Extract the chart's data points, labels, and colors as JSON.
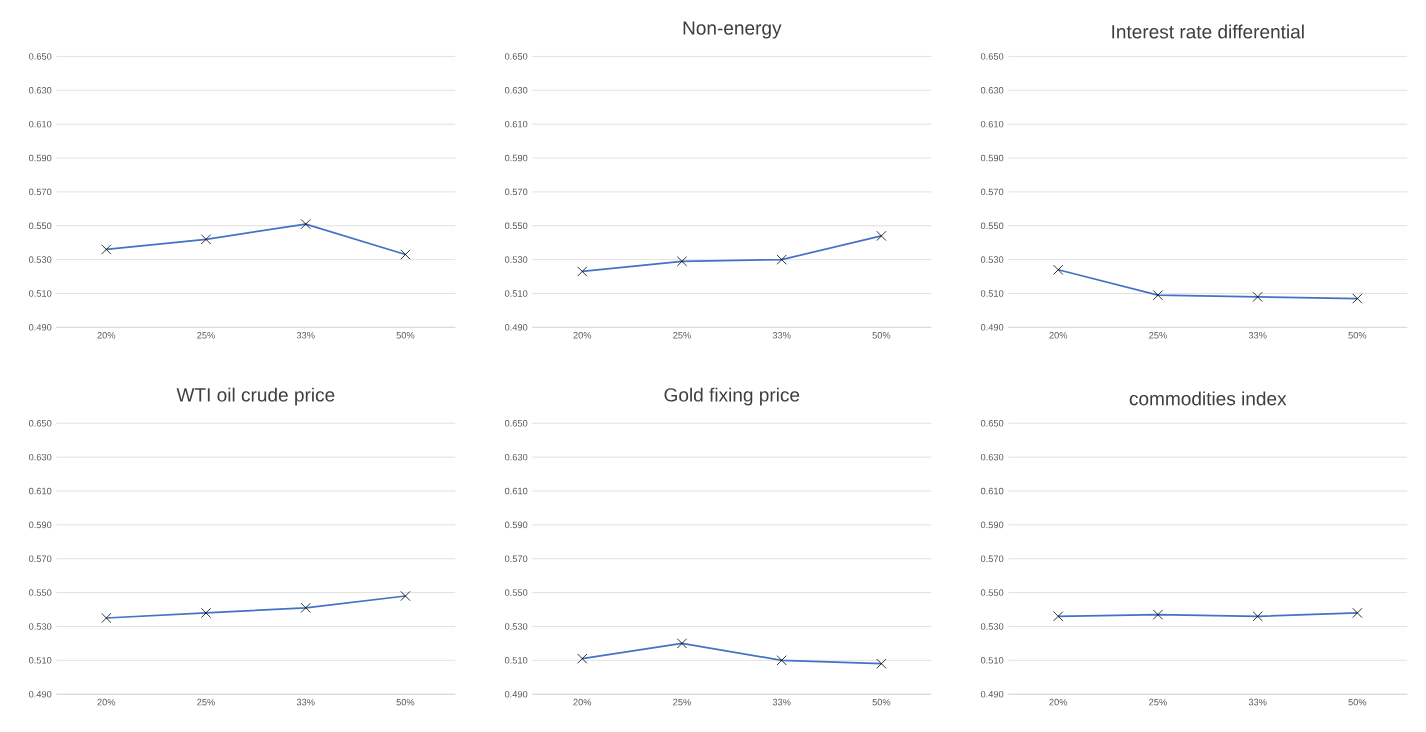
{
  "chart_data": [
    {
      "type": "line",
      "categories": [
        "20%",
        "25%",
        "33%",
        "50%"
      ],
      "values": [
        0.536,
        0.542,
        0.551,
        0.533
      ],
      "color": "#4472c4",
      "marker": "cross",
      "line_style": "solid",
      "grid": "y",
      "ylim": [
        0.49,
        0.65
      ],
      "yticks": [
        {
          "value": 0.49,
          "label": "0.490"
        },
        {
          "value": 0.51,
          "label": "0.510"
        },
        {
          "value": 0.53,
          "label": "0.530"
        },
        {
          "value": 0.55,
          "label": "0.550"
        },
        {
          "value": 0.57,
          "label": "0.570"
        },
        {
          "value": 0.59,
          "label": "0.590"
        },
        {
          "value": 0.61,
          "label": "0.610"
        },
        {
          "value": 0.63,
          "label": "0.630"
        },
        {
          "value": 0.65,
          "label": "0.650"
        }
      ]
    },
    {
      "type": "line",
      "title": "Non-energy",
      "categories": [
        "20%",
        "25%",
        "33%",
        "50%"
      ],
      "values": [
        0.523,
        0.529,
        0.53,
        0.544
      ],
      "color": "#4472c4",
      "marker": "cross",
      "line_style": "solid",
      "grid": "y",
      "ylim": [
        0.49,
        0.65
      ],
      "yticks": [
        {
          "value": 0.49,
          "label": "0.490"
        },
        {
          "value": 0.51,
          "label": "0.510"
        },
        {
          "value": 0.53,
          "label": "0.530"
        },
        {
          "value": 0.55,
          "label": "0.550"
        },
        {
          "value": 0.57,
          "label": "0.570"
        },
        {
          "value": 0.59,
          "label": "0.590"
        },
        {
          "value": 0.61,
          "label": "0.610"
        },
        {
          "value": 0.63,
          "label": "0.630"
        },
        {
          "value": 0.65,
          "label": "0.650"
        }
      ]
    },
    {
      "type": "line",
      "title": "Interest rate differential",
      "categories": [
        "20%",
        "25%",
        "33%",
        "50%"
      ],
      "values": [
        0.524,
        0.509,
        0.508,
        0.507
      ],
      "color": "#4472c4",
      "marker": "cross",
      "line_style": "solid",
      "grid": "y",
      "ylim": [
        0.49,
        0.65
      ],
      "yticks": [
        {
          "value": 0.49,
          "label": "0.490"
        },
        {
          "value": 0.51,
          "label": "0.510"
        },
        {
          "value": 0.53,
          "label": "0.530"
        },
        {
          "value": 0.55,
          "label": "0.550"
        },
        {
          "value": 0.57,
          "label": "0.570"
        },
        {
          "value": 0.59,
          "label": "0.590"
        },
        {
          "value": 0.61,
          "label": "0.610"
        },
        {
          "value": 0.63,
          "label": "0.630"
        },
        {
          "value": 0.65,
          "label": "0.650"
        }
      ]
    },
    {
      "type": "line",
      "title": "WTI oil crude price",
      "categories": [
        "20%",
        "25%",
        "33%",
        "50%"
      ],
      "values": [
        0.535,
        0.538,
        0.541,
        0.548
      ],
      "color": "#4472c4",
      "marker": "cross",
      "line_style": "solid",
      "grid": "y",
      "ylim": [
        0.49,
        0.65
      ],
      "yticks": [
        {
          "value": 0.49,
          "label": "0.490"
        },
        {
          "value": 0.51,
          "label": "0.510"
        },
        {
          "value": 0.53,
          "label": "0.530"
        },
        {
          "value": 0.55,
          "label": "0.550"
        },
        {
          "value": 0.57,
          "label": "0.570"
        },
        {
          "value": 0.59,
          "label": "0.590"
        },
        {
          "value": 0.61,
          "label": "0.610"
        },
        {
          "value": 0.63,
          "label": "0.630"
        },
        {
          "value": 0.65,
          "label": "0.650"
        }
      ]
    },
    {
      "type": "line",
      "title": "Gold fixing price",
      "categories": [
        "20%",
        "25%",
        "33%",
        "50%"
      ],
      "values": [
        0.511,
        0.52,
        0.51,
        0.508
      ],
      "color": "#4472c4",
      "marker": "cross",
      "line_style": "solid",
      "grid": "y",
      "ylim": [
        0.49,
        0.65
      ],
      "yticks": [
        {
          "value": 0.49,
          "label": "0.490"
        },
        {
          "value": 0.51,
          "label": "0.510"
        },
        {
          "value": 0.53,
          "label": "0.530"
        },
        {
          "value": 0.55,
          "label": "0.550"
        },
        {
          "value": 0.57,
          "label": "0.570"
        },
        {
          "value": 0.59,
          "label": "0.590"
        },
        {
          "value": 0.61,
          "label": "0.610"
        },
        {
          "value": 0.63,
          "label": "0.630"
        },
        {
          "value": 0.65,
          "label": "0.650"
        }
      ]
    },
    {
      "type": "line",
      "title": "commodities index",
      "categories": [
        "20%",
        "25%",
        "33%",
        "50%"
      ],
      "values": [
        0.536,
        0.537,
        0.536,
        0.538
      ],
      "color": "#4472c4",
      "marker": "cross",
      "line_style": "solid",
      "grid": "y",
      "ylim": [
        0.49,
        0.65
      ],
      "yticks": [
        {
          "value": 0.49,
          "label": "0.490"
        },
        {
          "value": 0.51,
          "label": "0.510"
        },
        {
          "value": 0.53,
          "label": "0.530"
        },
        {
          "value": 0.55,
          "label": "0.550"
        },
        {
          "value": 0.57,
          "label": "0.570"
        },
        {
          "value": 0.59,
          "label": "0.590"
        },
        {
          "value": 0.61,
          "label": "0.610"
        },
        {
          "value": 0.63,
          "label": "0.630"
        },
        {
          "value": 0.65,
          "label": "0.650"
        }
      ]
    }
  ]
}
